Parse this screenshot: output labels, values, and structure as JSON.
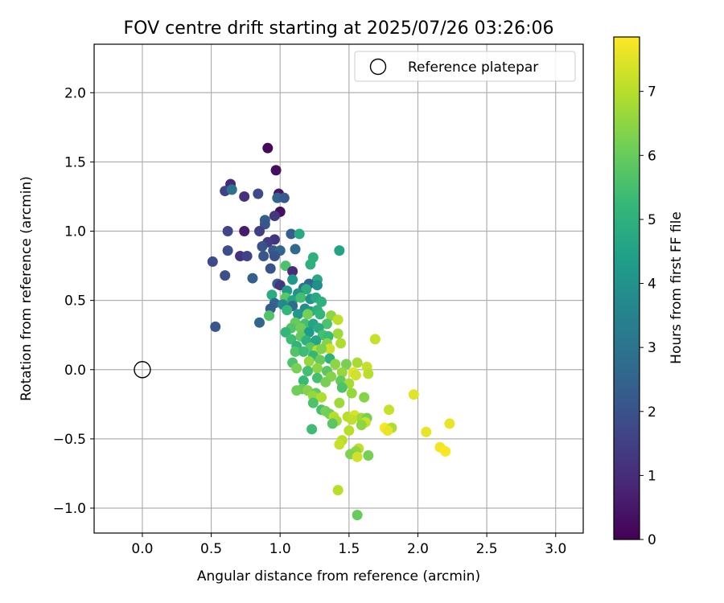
{
  "chart_data": {
    "type": "scatter",
    "title": "FOV centre drift starting at 2025/07/26 03:26:06",
    "xlabel": "Angular distance from reference (arcmin)",
    "ylabel": "Rotation from reference (arcmin)",
    "xlim": [
      -0.35,
      3.2
    ],
    "ylim": [
      -1.18,
      2.35
    ],
    "xticks": [
      "0.0",
      "0.5",
      "1.0",
      "1.5",
      "2.0",
      "2.5",
      "3.0"
    ],
    "yticks": [
      "−1.0",
      "−0.5",
      "0.0",
      "0.5",
      "1.0",
      "1.5",
      "2.0"
    ],
    "grid": true,
    "legend": {
      "position": "top-right",
      "entries": [
        "Reference platepar"
      ]
    },
    "reference_point": {
      "x": 0.0,
      "y": 0.0,
      "label": "Reference platepar"
    },
    "colorbar": {
      "label": "Hours from first FF file",
      "range": [
        0,
        7.85
      ],
      "ticks": [
        "0",
        "1",
        "2",
        "3",
        "4",
        "5",
        "6",
        "7"
      ],
      "colormap": "viridis"
    },
    "points": [
      {
        "x": 0.91,
        "y": 1.6,
        "h": 0.2
      },
      {
        "x": 0.97,
        "y": 1.44,
        "h": 0.3
      },
      {
        "x": 0.64,
        "y": 1.34,
        "h": 0.9
      },
      {
        "x": 0.6,
        "y": 1.29,
        "h": 1.6
      },
      {
        "x": 0.65,
        "y": 1.3,
        "h": 3.0
      },
      {
        "x": 0.74,
        "y": 1.25,
        "h": 1.1
      },
      {
        "x": 0.84,
        "y": 1.27,
        "h": 1.8
      },
      {
        "x": 0.99,
        "y": 1.27,
        "h": 0.5
      },
      {
        "x": 0.98,
        "y": 1.24,
        "h": 2.5
      },
      {
        "x": 1.03,
        "y": 1.24,
        "h": 2.2
      },
      {
        "x": 1.0,
        "y": 1.14,
        "h": 0.3
      },
      {
        "x": 0.96,
        "y": 1.11,
        "h": 1.3
      },
      {
        "x": 0.89,
        "y": 1.08,
        "h": 2.4
      },
      {
        "x": 0.89,
        "y": 1.05,
        "h": 2.1
      },
      {
        "x": 0.62,
        "y": 1.0,
        "h": 1.7
      },
      {
        "x": 0.74,
        "y": 1.0,
        "h": 0.6
      },
      {
        "x": 0.85,
        "y": 1.0,
        "h": 1.5
      },
      {
        "x": 1.08,
        "y": 0.98,
        "h": 2.3
      },
      {
        "x": 1.14,
        "y": 0.98,
        "h": 4.7
      },
      {
        "x": 0.96,
        "y": 0.94,
        "h": 1.2
      },
      {
        "x": 0.91,
        "y": 0.92,
        "h": 1.4
      },
      {
        "x": 0.87,
        "y": 0.89,
        "h": 2.0
      },
      {
        "x": 0.62,
        "y": 0.86,
        "h": 1.9
      },
      {
        "x": 0.95,
        "y": 0.86,
        "h": 2.2
      },
      {
        "x": 1.0,
        "y": 0.86,
        "h": 2.6
      },
      {
        "x": 1.11,
        "y": 0.87,
        "h": 2.7
      },
      {
        "x": 1.43,
        "y": 0.86,
        "h": 4.5
      },
      {
        "x": 0.96,
        "y": 0.82,
        "h": 2.0
      },
      {
        "x": 0.71,
        "y": 0.82,
        "h": 1.2
      },
      {
        "x": 0.76,
        "y": 0.82,
        "h": 1.6
      },
      {
        "x": 0.88,
        "y": 0.82,
        "h": 2.1
      },
      {
        "x": 0.51,
        "y": 0.78,
        "h": 1.8
      },
      {
        "x": 1.24,
        "y": 0.81,
        "h": 5.0
      },
      {
        "x": 1.22,
        "y": 0.76,
        "h": 5.0
      },
      {
        "x": 1.04,
        "y": 0.75,
        "h": 5.6
      },
      {
        "x": 0.93,
        "y": 0.73,
        "h": 2.0
      },
      {
        "x": 1.09,
        "y": 0.71,
        "h": 1.0
      },
      {
        "x": 0.6,
        "y": 0.68,
        "h": 1.9
      },
      {
        "x": 0.8,
        "y": 0.66,
        "h": 2.4
      },
      {
        "x": 1.09,
        "y": 0.65,
        "h": 4.2
      },
      {
        "x": 1.27,
        "y": 0.65,
        "h": 4.7
      },
      {
        "x": 0.98,
        "y": 0.62,
        "h": 2.4
      },
      {
        "x": 1.0,
        "y": 0.61,
        "h": 1.3
      },
      {
        "x": 1.21,
        "y": 0.62,
        "h": 2.6
      },
      {
        "x": 1.27,
        "y": 0.61,
        "h": 3.9
      },
      {
        "x": 1.17,
        "y": 0.59,
        "h": 3.1
      },
      {
        "x": 1.19,
        "y": 0.58,
        "h": 4.9
      },
      {
        "x": 1.05,
        "y": 0.57,
        "h": 4.3
      },
      {
        "x": 1.13,
        "y": 0.55,
        "h": 4.0
      },
      {
        "x": 0.94,
        "y": 0.54,
        "h": 4.8
      },
      {
        "x": 1.04,
        "y": 0.52,
        "h": 5.8
      },
      {
        "x": 1.09,
        "y": 0.5,
        "h": 4.6
      },
      {
        "x": 1.15,
        "y": 0.52,
        "h": 5.5
      },
      {
        "x": 1.22,
        "y": 0.51,
        "h": 4.0
      },
      {
        "x": 1.26,
        "y": 0.52,
        "h": 4.7
      },
      {
        "x": 1.3,
        "y": 0.49,
        "h": 5.0
      },
      {
        "x": 0.96,
        "y": 0.48,
        "h": 2.5
      },
      {
        "x": 1.02,
        "y": 0.47,
        "h": 3.7
      },
      {
        "x": 1.09,
        "y": 0.46,
        "h": 2.8
      },
      {
        "x": 0.93,
        "y": 0.44,
        "h": 2.3
      },
      {
        "x": 1.05,
        "y": 0.43,
        "h": 5.2
      },
      {
        "x": 1.18,
        "y": 0.44,
        "h": 3.8
      },
      {
        "x": 1.22,
        "y": 0.42,
        "h": 4.4
      },
      {
        "x": 1.27,
        "y": 0.43,
        "h": 5.0
      },
      {
        "x": 1.13,
        "y": 0.4,
        "h": 4.2
      },
      {
        "x": 1.2,
        "y": 0.4,
        "h": 6.2
      },
      {
        "x": 1.29,
        "y": 0.4,
        "h": 5.2
      },
      {
        "x": 0.92,
        "y": 0.39,
        "h": 5.7
      },
      {
        "x": 1.37,
        "y": 0.39,
        "h": 6.5
      },
      {
        "x": 1.42,
        "y": 0.36,
        "h": 7.1
      },
      {
        "x": 0.85,
        "y": 0.34,
        "h": 2.6
      },
      {
        "x": 1.11,
        "y": 0.34,
        "h": 6.0
      },
      {
        "x": 1.18,
        "y": 0.33,
        "h": 5.5
      },
      {
        "x": 1.24,
        "y": 0.33,
        "h": 4.6
      },
      {
        "x": 1.34,
        "y": 0.33,
        "h": 5.6
      },
      {
        "x": 0.53,
        "y": 0.31,
        "h": 2.1
      },
      {
        "x": 1.08,
        "y": 0.3,
        "h": 5.7
      },
      {
        "x": 1.15,
        "y": 0.3,
        "h": 6.1
      },
      {
        "x": 1.28,
        "y": 0.3,
        "h": 4.8
      },
      {
        "x": 1.21,
        "y": 0.27,
        "h": 4.3
      },
      {
        "x": 1.04,
        "y": 0.27,
        "h": 5.2
      },
      {
        "x": 1.31,
        "y": 0.25,
        "h": 5.5
      },
      {
        "x": 1.42,
        "y": 0.26,
        "h": 6.7
      },
      {
        "x": 1.15,
        "y": 0.24,
        "h": 5.9
      },
      {
        "x": 1.35,
        "y": 0.24,
        "h": 5.3
      },
      {
        "x": 1.08,
        "y": 0.22,
        "h": 5.4
      },
      {
        "x": 1.19,
        "y": 0.21,
        "h": 5.0
      },
      {
        "x": 1.26,
        "y": 0.21,
        "h": 4.6
      },
      {
        "x": 1.69,
        "y": 0.22,
        "h": 7.2
      },
      {
        "x": 1.34,
        "y": 0.19,
        "h": 6.4
      },
      {
        "x": 1.44,
        "y": 0.19,
        "h": 6.9
      },
      {
        "x": 1.12,
        "y": 0.17,
        "h": 5.1
      },
      {
        "x": 1.22,
        "y": 0.16,
        "h": 5.8
      },
      {
        "x": 1.36,
        "y": 0.15,
        "h": 7.3
      },
      {
        "x": 1.27,
        "y": 0.14,
        "h": 7.0
      },
      {
        "x": 1.3,
        "y": 0.15,
        "h": 6.3
      },
      {
        "x": 1.11,
        "y": 0.13,
        "h": 5.7
      },
      {
        "x": 1.17,
        "y": 0.13,
        "h": 5.4
      },
      {
        "x": 1.24,
        "y": 0.1,
        "h": 5.2
      },
      {
        "x": 1.36,
        "y": 0.08,
        "h": 5.0
      },
      {
        "x": 1.29,
        "y": 0.07,
        "h": 6.0
      },
      {
        "x": 1.21,
        "y": 0.06,
        "h": 6.6
      },
      {
        "x": 1.09,
        "y": 0.05,
        "h": 5.6
      },
      {
        "x": 1.4,
        "y": 0.04,
        "h": 6.5
      },
      {
        "x": 1.48,
        "y": 0.04,
        "h": 6.2
      },
      {
        "x": 1.56,
        "y": 0.05,
        "h": 6.8
      },
      {
        "x": 1.63,
        "y": 0.02,
        "h": 7.2
      },
      {
        "x": 1.12,
        "y": 0.01,
        "h": 6.2
      },
      {
        "x": 1.27,
        "y": 0.01,
        "h": 6.5
      },
      {
        "x": 1.2,
        "y": -0.01,
        "h": 5.5
      },
      {
        "x": 1.34,
        "y": -0.01,
        "h": 5.8
      },
      {
        "x": 1.45,
        "y": -0.02,
        "h": 6.6
      },
      {
        "x": 1.53,
        "y": -0.02,
        "h": 7.5
      },
      {
        "x": 1.55,
        "y": -0.04,
        "h": 7.3
      },
      {
        "x": 1.64,
        "y": -0.03,
        "h": 7.0
      },
      {
        "x": 1.37,
        "y": -0.05,
        "h": 6.4
      },
      {
        "x": 1.27,
        "y": -0.06,
        "h": 5.5
      },
      {
        "x": 1.44,
        "y": -0.08,
        "h": 5.9
      },
      {
        "x": 1.17,
        "y": -0.08,
        "h": 5.3
      },
      {
        "x": 1.33,
        "y": -0.09,
        "h": 6.2
      },
      {
        "x": 1.5,
        "y": -0.1,
        "h": 6.8
      },
      {
        "x": 1.45,
        "y": -0.13,
        "h": 5.6
      },
      {
        "x": 1.16,
        "y": -0.14,
        "h": 6.0
      },
      {
        "x": 1.2,
        "y": -0.15,
        "h": 6.4
      },
      {
        "x": 1.12,
        "y": -0.15,
        "h": 6.1
      },
      {
        "x": 1.26,
        "y": -0.17,
        "h": 5.9
      },
      {
        "x": 1.52,
        "y": -0.17,
        "h": 6.6
      },
      {
        "x": 1.24,
        "y": -0.19,
        "h": 6.6
      },
      {
        "x": 1.3,
        "y": -0.2,
        "h": 6.9
      },
      {
        "x": 1.61,
        "y": -0.2,
        "h": 6.4
      },
      {
        "x": 1.97,
        "y": -0.18,
        "h": 7.5
      },
      {
        "x": 1.24,
        "y": -0.24,
        "h": 5.6
      },
      {
        "x": 1.43,
        "y": -0.24,
        "h": 6.7
      },
      {
        "x": 1.3,
        "y": -0.29,
        "h": 5.5
      },
      {
        "x": 1.33,
        "y": -0.3,
        "h": 6.2
      },
      {
        "x": 1.79,
        "y": -0.29,
        "h": 7.2
      },
      {
        "x": 1.36,
        "y": -0.32,
        "h": 6.1
      },
      {
        "x": 1.39,
        "y": -0.34,
        "h": 7.0
      },
      {
        "x": 1.49,
        "y": -0.34,
        "h": 7.0
      },
      {
        "x": 1.54,
        "y": -0.33,
        "h": 7.4
      },
      {
        "x": 1.59,
        "y": -0.35,
        "h": 6.7
      },
      {
        "x": 1.63,
        "y": -0.35,
        "h": 6.2
      },
      {
        "x": 1.41,
        "y": -0.37,
        "h": 6.8
      },
      {
        "x": 1.52,
        "y": -0.36,
        "h": 7.1
      },
      {
        "x": 1.62,
        "y": -0.38,
        "h": 7.2
      },
      {
        "x": 1.38,
        "y": -0.39,
        "h": 5.8
      },
      {
        "x": 1.59,
        "y": -0.4,
        "h": 6.5
      },
      {
        "x": 1.76,
        "y": -0.42,
        "h": 7.8
      },
      {
        "x": 1.81,
        "y": -0.42,
        "h": 6.9
      },
      {
        "x": 1.78,
        "y": -0.44,
        "h": 7.6
      },
      {
        "x": 2.06,
        "y": -0.45,
        "h": 7.6
      },
      {
        "x": 1.23,
        "y": -0.43,
        "h": 5.4
      },
      {
        "x": 1.5,
        "y": -0.44,
        "h": 7.0
      },
      {
        "x": 2.23,
        "y": -0.39,
        "h": 7.6
      },
      {
        "x": 1.45,
        "y": -0.51,
        "h": 7.0
      },
      {
        "x": 1.43,
        "y": -0.54,
        "h": 7.2
      },
      {
        "x": 2.16,
        "y": -0.56,
        "h": 7.7
      },
      {
        "x": 2.2,
        "y": -0.59,
        "h": 7.8
      },
      {
        "x": 1.57,
        "y": -0.57,
        "h": 7.1
      },
      {
        "x": 1.55,
        "y": -0.59,
        "h": 6.5
      },
      {
        "x": 1.51,
        "y": -0.61,
        "h": 6.3
      },
      {
        "x": 1.56,
        "y": -0.63,
        "h": 7.3
      },
      {
        "x": 1.64,
        "y": -0.62,
        "h": 6.2
      },
      {
        "x": 1.42,
        "y": -0.87,
        "h": 7.0
      },
      {
        "x": 1.56,
        "y": -1.05,
        "h": 6.0
      }
    ]
  }
}
